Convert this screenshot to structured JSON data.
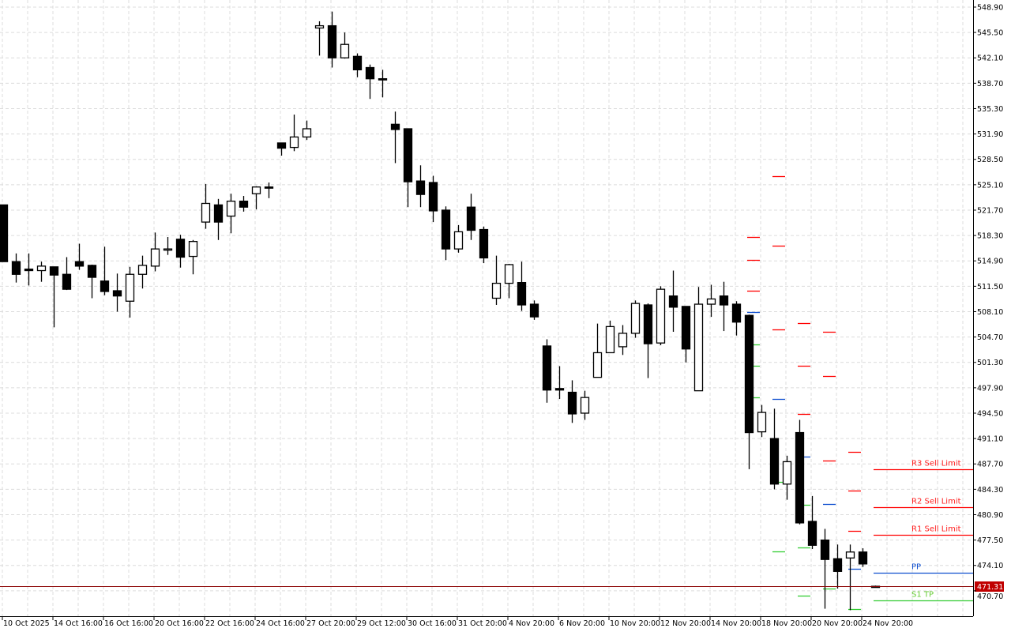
{
  "chart_data": {
    "type": "candlestick",
    "ylim": [
      467.3,
      549.85
    ],
    "grid": true,
    "y_ticks": [
      "548.90",
      "545.50",
      "542.10",
      "538.70",
      "535.30",
      "531.90",
      "528.50",
      "525.10",
      "521.70",
      "518.30",
      "514.90",
      "511.50",
      "508.10",
      "504.70",
      "501.30",
      "497.90",
      "494.50",
      "491.10",
      "487.70",
      "484.30",
      "480.90",
      "477.50",
      "474.10",
      "470.70"
    ],
    "x_ticks": [
      {
        "index": 0,
        "label": "10 Oct 2025"
      },
      {
        "index": 4,
        "label": "14 Oct 16:00"
      },
      {
        "index": 8,
        "label": "16 Oct 16:00"
      },
      {
        "index": 12,
        "label": "20 Oct 16:00"
      },
      {
        "index": 16,
        "label": "22 Oct 16:00"
      },
      {
        "index": 20,
        "label": "24 Oct 16:00"
      },
      {
        "index": 24,
        "label": "27 Oct 20:00"
      },
      {
        "index": 28,
        "label": "29 Oct 12:00"
      },
      {
        "index": 32,
        "label": "30 Oct 16:00"
      },
      {
        "index": 36,
        "label": "31 Oct 20:00"
      },
      {
        "index": 40,
        "label": "4 Nov 20:00"
      },
      {
        "index": 44,
        "label": "6 Nov 20:00"
      },
      {
        "index": 48,
        "label": "10 Nov 20:00"
      },
      {
        "index": 52,
        "label": "12 Nov 20:00"
      },
      {
        "index": 56,
        "label": "14 Nov 20:00"
      },
      {
        "index": 60,
        "label": "18 Nov 20:00"
      },
      {
        "index": 64,
        "label": "20 Nov 20:00"
      },
      {
        "index": 68,
        "label": "24 Nov 20:00"
      }
    ],
    "ohlc_columns": [
      "open",
      "high",
      "low",
      "close"
    ],
    "candles": [
      [
        522.4,
        522.4,
        514.8,
        514.8
      ],
      [
        514.8,
        515.9,
        512.0,
        513.1
      ],
      [
        513.8,
        515.9,
        511.6,
        513.6
      ],
      [
        513.6,
        514.8,
        512.1,
        514.2
      ],
      [
        514.1,
        514.1,
        506.0,
        513.0
      ],
      [
        513.1,
        515.4,
        511.0,
        511.1
      ],
      [
        514.8,
        517.2,
        513.7,
        514.2
      ],
      [
        514.3,
        514.4,
        509.9,
        512.7
      ],
      [
        512.2,
        516.8,
        510.3,
        510.8
      ],
      [
        510.9,
        513.2,
        508.1,
        510.2
      ],
      [
        509.5,
        514.1,
        507.3,
        513.1
      ],
      [
        513.1,
        515.6,
        511.2,
        514.3
      ],
      [
        514.2,
        518.7,
        513.5,
        516.5
      ],
      [
        516.5,
        518.1,
        515.7,
        516.5
      ],
      [
        517.8,
        518.4,
        514.0,
        515.4
      ],
      [
        515.5,
        517.7,
        513.1,
        517.5
      ],
      [
        520.1,
        525.2,
        519.2,
        522.6
      ],
      [
        522.4,
        523.2,
        517.7,
        520.1
      ],
      [
        520.9,
        523.9,
        518.6,
        522.9
      ],
      [
        522.9,
        523.6,
        521.5,
        522.1
      ],
      [
        523.9,
        524.9,
        521.8,
        524.8
      ],
      [
        524.8,
        525.4,
        523.3,
        524.7
      ],
      [
        530.7,
        530.7,
        529.0,
        530.0
      ],
      [
        530.1,
        534.5,
        529.6,
        531.5
      ],
      [
        531.5,
        533.7,
        531.1,
        532.6
      ],
      [
        546.1,
        547.0,
        542.4,
        546.4
      ],
      [
        546.4,
        548.3,
        540.8,
        542.1
      ],
      [
        542.1,
        545.5,
        542.0,
        543.9
      ],
      [
        542.3,
        542.7,
        539.5,
        540.5
      ],
      [
        540.8,
        541.2,
        536.6,
        539.3
      ],
      [
        539.3,
        540.5,
        536.8,
        539.2
      ],
      [
        533.2,
        534.9,
        528.0,
        532.5
      ],
      [
        532.6,
        532.6,
        522.1,
        525.5
      ],
      [
        525.6,
        527.7,
        522.1,
        523.8
      ],
      [
        525.4,
        526.3,
        520.1,
        521.6
      ],
      [
        521.7,
        522.2,
        515.0,
        516.5
      ],
      [
        516.5,
        519.7,
        516.0,
        518.8
      ],
      [
        522.1,
        523.9,
        517.7,
        519.0
      ],
      [
        519.1,
        519.5,
        514.6,
        515.3
      ],
      [
        509.9,
        515.6,
        509.0,
        511.9
      ],
      [
        511.9,
        514.5,
        509.9,
        514.4
      ],
      [
        512.0,
        514.8,
        508.2,
        509.0
      ],
      [
        509.1,
        509.6,
        507.0,
        507.4
      ],
      [
        503.5,
        504.4,
        495.9,
        497.6
      ],
      [
        497.8,
        500.8,
        496.4,
        497.6
      ],
      [
        497.3,
        498.9,
        493.2,
        494.4
      ],
      [
        494.5,
        497.5,
        493.6,
        496.6
      ],
      [
        499.3,
        506.5,
        499.3,
        502.6
      ],
      [
        502.6,
        506.9,
        502.6,
        506.1
      ],
      [
        503.4,
        506.3,
        502.3,
        505.2
      ],
      [
        505.2,
        509.6,
        504.6,
        509.2
      ],
      [
        509.0,
        509.2,
        499.2,
        503.8
      ],
      [
        503.9,
        511.5,
        503.6,
        511.1
      ],
      [
        510.2,
        513.6,
        505.4,
        508.7
      ],
      [
        508.8,
        508.8,
        501.3,
        503.1
      ],
      [
        497.5,
        511.4,
        497.5,
        509.1
      ],
      [
        509.1,
        511.7,
        507.4,
        509.8
      ],
      [
        510.2,
        512.1,
        505.5,
        509.0
      ],
      [
        509.1,
        509.5,
        504.9,
        506.7
      ],
      [
        507.6,
        507.7,
        487.0,
        491.9
      ],
      [
        492.0,
        495.6,
        491.3,
        494.6
      ],
      [
        491.1,
        495.1,
        484.3,
        485.0
      ],
      [
        485.0,
        488.8,
        482.9,
        488.0
      ],
      [
        491.9,
        493.6,
        479.6,
        479.8
      ],
      [
        480.0,
        483.4,
        476.3,
        476.8
      ],
      [
        477.5,
        479.0,
        468.3,
        474.9
      ],
      [
        475.0,
        476.9,
        471.0,
        473.3
      ],
      [
        475.1,
        476.9,
        468.1,
        475.9
      ],
      [
        475.9,
        476.4,
        473.9,
        474.3
      ],
      [
        471.3,
        471.4,
        471.2,
        471.31
      ]
    ],
    "current_price": {
      "value": 471.31,
      "label": "471.31",
      "color": "#c00000"
    },
    "pivot_history": [
      {
        "start_index": 59,
        "R3": 518.1,
        "R2": 515.0,
        "R1": 510.9,
        "PP": 508.0,
        "S1": 503.7,
        "S2": 500.8,
        "S3": 496.6
      },
      {
        "start_index": 61,
        "R3": 526.3,
        "R2": 516.9,
        "R1": 505.7,
        "PP": 496.4,
        "S1": 485.3,
        "S2": 476.0
      },
      {
        "start_index": 63,
        "R3": 506.6,
        "R2": 500.9,
        "R1": 494.4,
        "PP": 488.7,
        "S1": 482.2,
        "S2": 476.5,
        "S3": 470.1
      },
      {
        "start_index": 65,
        "R3": 505.4,
        "R2": 499.5,
        "R1": 488.2,
        "PP": 482.3,
        "S1": 471.0
      },
      {
        "start_index": 67,
        "R3": 489.3,
        "R2": 484.1,
        "R1": 478.7,
        "PP": 473.6,
        "S1": 468.3
      }
    ],
    "pivot_current": [
      {
        "key": "R3",
        "value": 487.0,
        "label": "R3 Sell Limit"
      },
      {
        "key": "R2",
        "value": 481.9,
        "label": "R2 Sell Limit"
      },
      {
        "key": "R1",
        "value": 478.2,
        "label": "R1 Sell Limit"
      },
      {
        "key": "PP",
        "value": 473.1,
        "label": "PP"
      },
      {
        "key": "S1",
        "value": 469.4,
        "label": "S1 TP"
      }
    ],
    "colors": {
      "bull_body": "#ffffff",
      "bear_body": "#000000",
      "wick": "#000000",
      "grid": "#dcdcdc",
      "resistance": "#ff0000",
      "pivot": "#1050d0",
      "support": "#33cc33",
      "resistance_label": "#ff2020",
      "pivot_label": "#1050d0",
      "support_label": "#66cc33"
    }
  }
}
